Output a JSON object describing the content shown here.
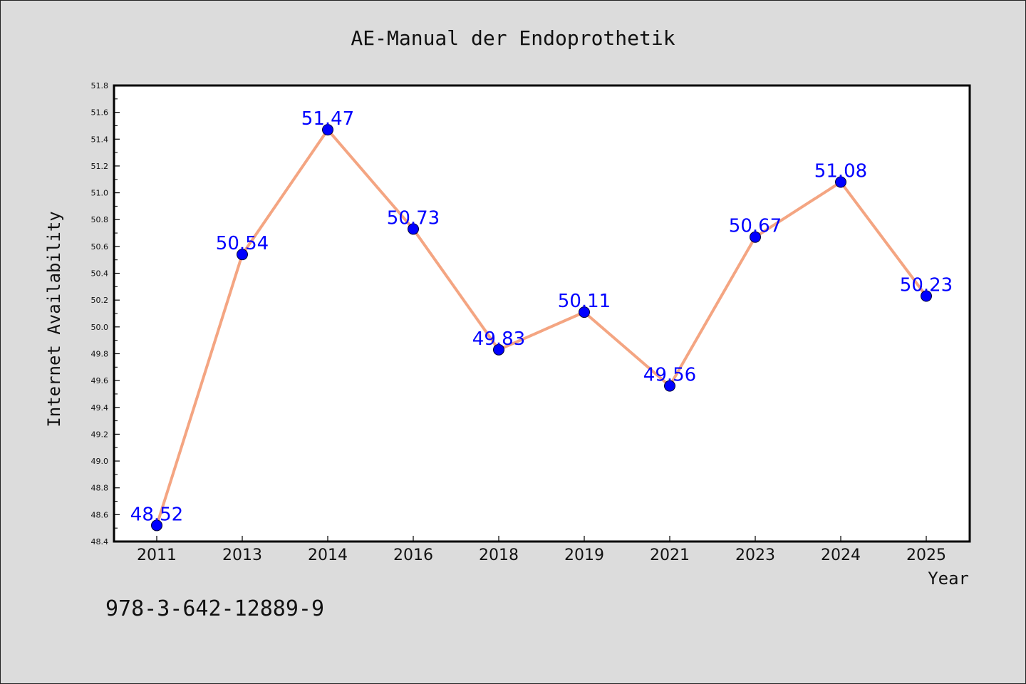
{
  "chart_data": {
    "type": "line",
    "title": "AE-Manual der Endoprothetik",
    "xlabel": "Year",
    "ylabel": "Internet Availability",
    "categories": [
      "2011",
      "2013",
      "2014",
      "2016",
      "2018",
      "2019",
      "2021",
      "2023",
      "2024",
      "2025"
    ],
    "series": [
      {
        "values": [
          48.52,
          50.54,
          51.47,
          50.73,
          49.83,
          50.11,
          49.56,
          50.67,
          51.08,
          50.23
        ]
      }
    ],
    "data_labels": [
      "48.52",
      "50.54",
      "51.47",
      "50.73",
      "49.83",
      "50.11",
      "49.56",
      "50.67",
      "51.08",
      "50.23"
    ],
    "y_ticks": [
      "48.4",
      "48.6",
      "48.8",
      "49.0",
      "49.2",
      "49.4",
      "49.6",
      "49.8",
      "50.0",
      "50.2",
      "50.4",
      "50.6",
      "50.8",
      "51.0",
      "51.2",
      "51.4",
      "51.6",
      "51.8"
    ],
    "ylim": [
      48.4,
      51.8
    ],
    "grid": false,
    "legend": "none",
    "colors": {
      "line": "#f4a582",
      "marker": "#0000ff",
      "label": "#0000ff",
      "plot_bg": "#ffffff",
      "page_bg": "#dcdcdc"
    }
  },
  "footer": {
    "isbn": "978-3-642-12889-9"
  }
}
